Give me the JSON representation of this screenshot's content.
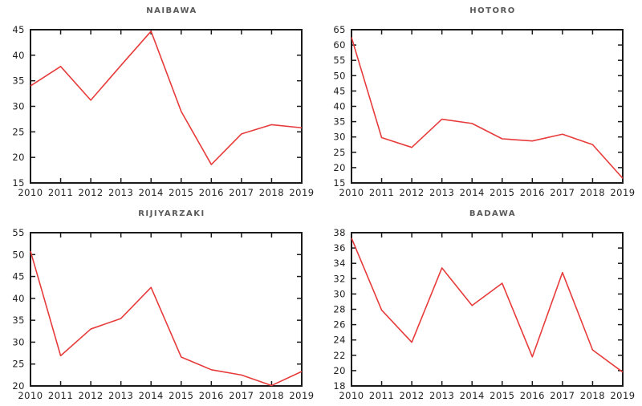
{
  "style": {
    "background": "#ffffff",
    "axis_color": "#1a1a1a",
    "tick_label_color": "#1f1f1f",
    "title_color": "#595959",
    "series_color": "#e73b3b"
  },
  "chart_data": [
    {
      "type": "line",
      "title": "NAIBAWA",
      "x": [
        2010,
        2011,
        2012,
        2013,
        2014,
        2015,
        2016,
        2017,
        2018,
        2019
      ],
      "values": [
        34.0,
        37.8,
        31.2,
        38.0,
        44.7,
        29.0,
        18.6,
        24.6,
        26.4,
        25.8
      ],
      "ylim": [
        15,
        45
      ],
      "ytick_step": 5,
      "xlabel": "",
      "ylabel": "",
      "grid": false,
      "legend": "none",
      "line_color": "#e73b3b"
    },
    {
      "type": "line",
      "title": "HOTORO",
      "x": [
        2010,
        2011,
        2012,
        2013,
        2014,
        2015,
        2016,
        2017,
        2018,
        2019
      ],
      "values": [
        62.5,
        29.8,
        26.6,
        35.8,
        34.4,
        29.4,
        28.7,
        30.9,
        27.5,
        16.5
      ],
      "ylim": [
        15,
        65
      ],
      "ytick_step": 5,
      "xlabel": "",
      "ylabel": "",
      "grid": false,
      "legend": "none",
      "line_color": "#e73b3b"
    },
    {
      "type": "line",
      "title": "RIJIYARZAKI",
      "x": [
        2010,
        2011,
        2012,
        2013,
        2014,
        2015,
        2016,
        2017,
        2018,
        2019
      ],
      "values": [
        50.8,
        26.9,
        33.0,
        35.4,
        42.5,
        26.6,
        23.7,
        22.5,
        20.1,
        23.3
      ],
      "ylim": [
        20,
        55
      ],
      "ytick_step": 5,
      "xlabel": "",
      "ylabel": "",
      "grid": false,
      "legend": "none",
      "line_color": "#e73b3b"
    },
    {
      "type": "line",
      "title": "BADAWA",
      "x": [
        2010,
        2011,
        2012,
        2013,
        2014,
        2015,
        2016,
        2017,
        2018,
        2019
      ],
      "values": [
        37.3,
        27.9,
        23.7,
        33.4,
        28.5,
        31.4,
        21.8,
        32.8,
        22.7,
        19.8
      ],
      "ylim": [
        18,
        38
      ],
      "ytick_step": 2,
      "xlabel": "",
      "ylabel": "",
      "grid": false,
      "legend": "none",
      "line_color": "#e73b3b"
    }
  ]
}
